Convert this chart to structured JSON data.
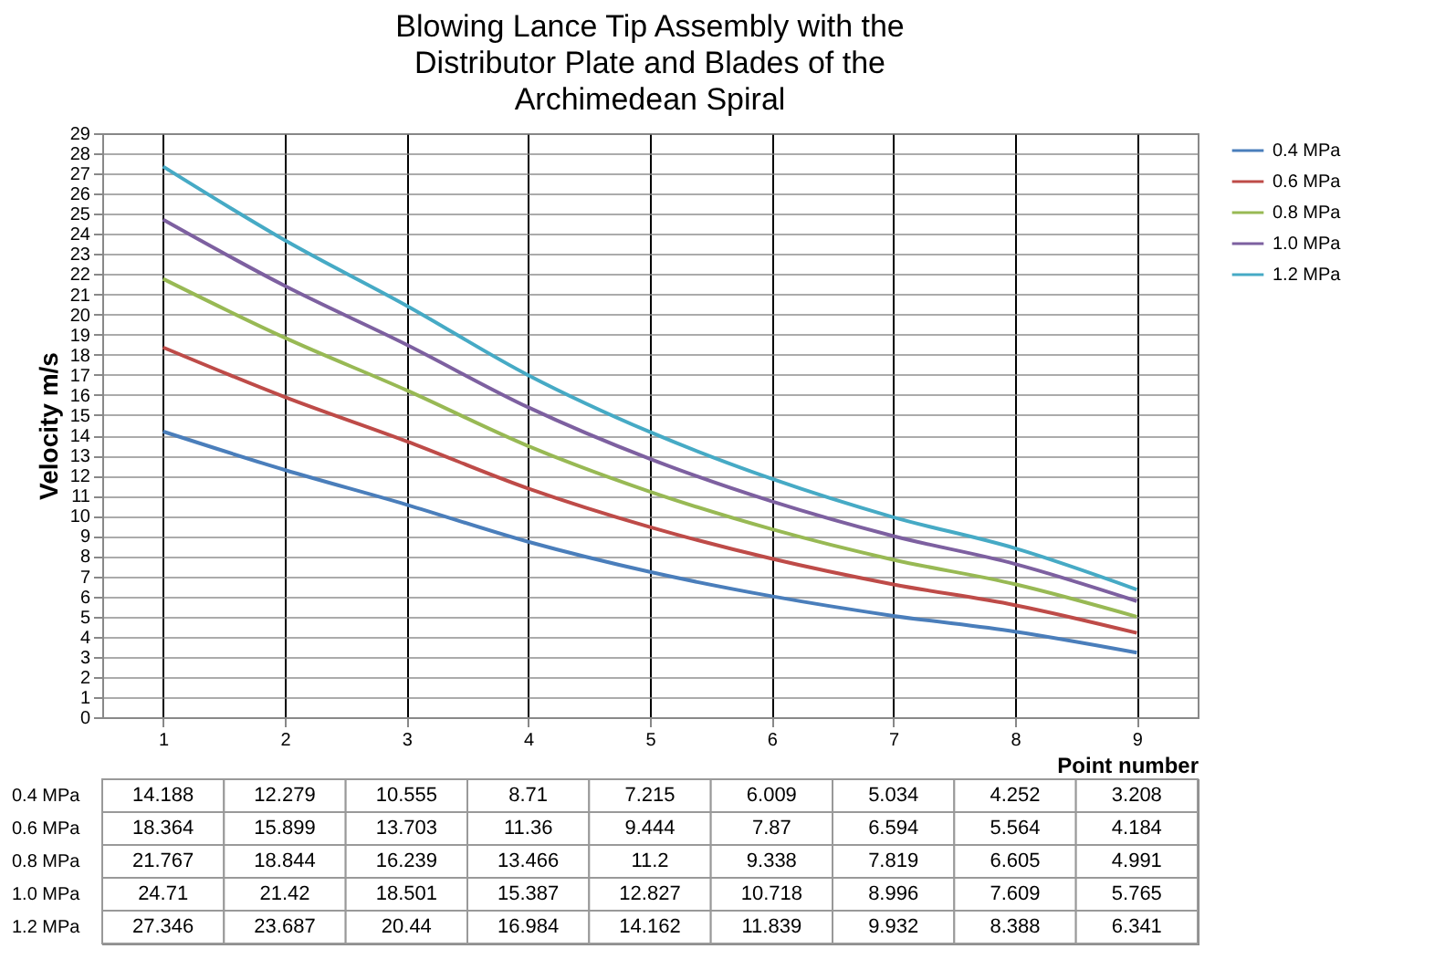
{
  "chart_data": {
    "type": "line",
    "title": "Blowing Lance Tip Assembly with the Distributor Plate and Blades of the Archimedean Spiral",
    "xlabel": "Point number",
    "ylabel": "Velocity m/s",
    "categories": [
      "1",
      "2",
      "3",
      "4",
      "5",
      "6",
      "7",
      "8",
      "9"
    ],
    "series": [
      {
        "name": "0.4 MPa",
        "color": "#4a7ebb",
        "values": [
          14.188,
          12.279,
          10.555,
          8.71,
          7.215,
          6.009,
          5.034,
          4.252,
          3.208
        ]
      },
      {
        "name": "0.6 MPa",
        "color": "#be4b48",
        "values": [
          18.364,
          15.899,
          13.703,
          11.36,
          9.444,
          7.87,
          6.594,
          5.564,
          4.184
        ]
      },
      {
        "name": "0.8 MPa",
        "color": "#98b954",
        "values": [
          21.767,
          18.844,
          16.239,
          13.466,
          11.2,
          9.338,
          7.819,
          6.605,
          4.991
        ]
      },
      {
        "name": "1.0 MPa",
        "color": "#7d60a0",
        "values": [
          24.71,
          21.42,
          18.501,
          15.387,
          12.827,
          10.718,
          8.996,
          7.609,
          5.765
        ]
      },
      {
        "name": "1.2 MPa",
        "color": "#46aac5",
        "values": [
          27.346,
          23.687,
          20.44,
          16.984,
          14.162,
          11.839,
          9.932,
          8.388,
          6.341
        ]
      }
    ],
    "ylim": [
      0,
      29
    ],
    "yticks": [
      0,
      1,
      2,
      3,
      4,
      5,
      6,
      7,
      8,
      9,
      10,
      11,
      12,
      13,
      14,
      15,
      16,
      17,
      18,
      19,
      20,
      21,
      22,
      23,
      24,
      25,
      26,
      27,
      28,
      29
    ],
    "grid": true,
    "legend": "right",
    "marker": "none",
    "line_style": "solid",
    "data_labels": true
  }
}
